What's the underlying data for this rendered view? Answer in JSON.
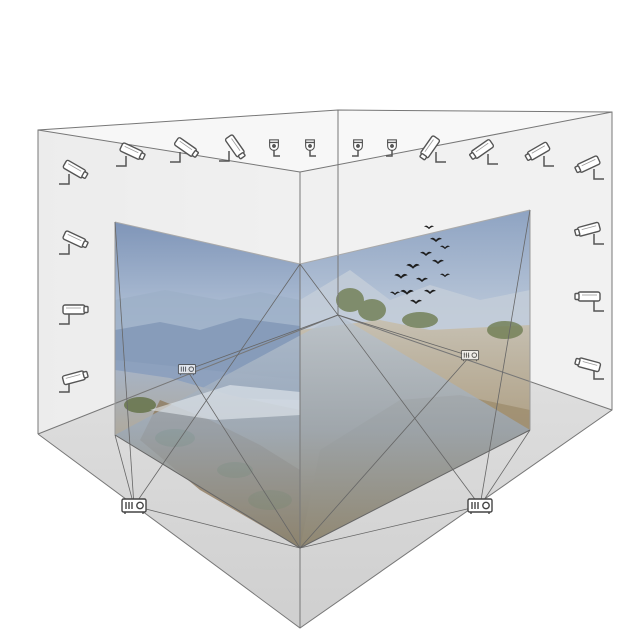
{
  "diagram": {
    "colors": {
      "background": "#ffffff",
      "wall": "#ebebeb",
      "floor": "#d8d8d8",
      "line": "#777777",
      "sky": "#a9bdd5",
      "mountain": "#7f94b2",
      "hill": "#9b8e78",
      "shrub": "#6f7d52",
      "birds": "#1e1e1e"
    },
    "icons": {
      "camera": "surveillance-camera-icon",
      "projector": "projector-icon",
      "birds": "bird-flock-icon"
    },
    "camera_count": 18,
    "projector_count": 4
  }
}
